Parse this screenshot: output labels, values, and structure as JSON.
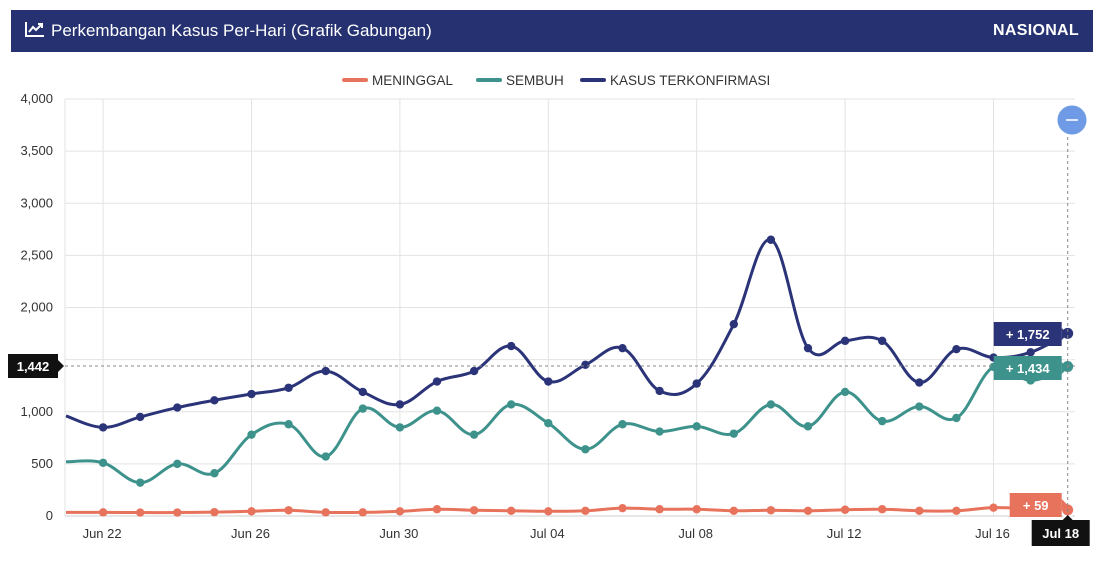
{
  "header": {
    "title": "Perkembangan Kasus Per-Hari (Grafik Gabungan)",
    "scope": "NASIONAL",
    "icon": "line-chart-icon"
  },
  "crosshair": {
    "y_value_label": "1,442",
    "x_date_label": "Jul 18"
  },
  "tooltips": {
    "kasus": "+ 1,752",
    "sembuh": "+ 1,434",
    "meninggal": "+ 59"
  },
  "zoom_button": {
    "icon": "minus-icon"
  },
  "colors": {
    "kasus": "#2b3478",
    "sembuh": "#3e928c",
    "meninggal": "#e8735c",
    "header": "#253170",
    "zoom": "#6e9ae6"
  },
  "chart_data": {
    "type": "line",
    "x_start": "2020-06-21",
    "x_tick_labels": [
      "Jun 22",
      "Jun 26",
      "Jun 30",
      "Jul 04",
      "Jul 08",
      "Jul 12",
      "Jul 16"
    ],
    "x_tick_days": [
      1,
      5,
      9,
      13,
      17,
      21,
      25
    ],
    "x_day_range": [
      0,
      27
    ],
    "ylim": [
      0,
      4000
    ],
    "y_ticks": [
      0,
      500,
      1000,
      1500,
      2000,
      2500,
      3000,
      3500,
      4000
    ],
    "y_tick_labels": [
      "0",
      "500",
      "1,000",
      "1,500",
      "2,000",
      "2,500",
      "3,000",
      "3,500",
      "4,000"
    ],
    "grid": true,
    "legend_position": "top-center",
    "series": [
      {
        "name": "MENINGGAL",
        "key": "meninggal",
        "values": [
          35,
          35,
          33,
          33,
          37,
          45,
          55,
          35,
          35,
          45,
          65,
          55,
          50,
          45,
          50,
          75,
          65,
          65,
          50,
          55,
          50,
          60,
          65,
          50,
          50,
          80,
          70,
          59
        ]
      },
      {
        "name": "SEMBUH",
        "key": "sembuh",
        "values": [
          520,
          510,
          320,
          500,
          410,
          780,
          880,
          570,
          1030,
          850,
          1010,
          780,
          1070,
          890,
          640,
          880,
          810,
          860,
          790,
          1070,
          860,
          1190,
          910,
          1050,
          940,
          1430,
          1300,
          1434
        ]
      },
      {
        "name": "KASUS TERKONFIRMASI",
        "key": "kasus",
        "values": [
          960,
          850,
          950,
          1040,
          1110,
          1170,
          1230,
          1390,
          1190,
          1070,
          1290,
          1390,
          1630,
          1290,
          1450,
          1610,
          1200,
          1270,
          1840,
          2650,
          1610,
          1680,
          1680,
          1280,
          1600,
          1520,
          1570,
          1752
        ]
      }
    ]
  }
}
